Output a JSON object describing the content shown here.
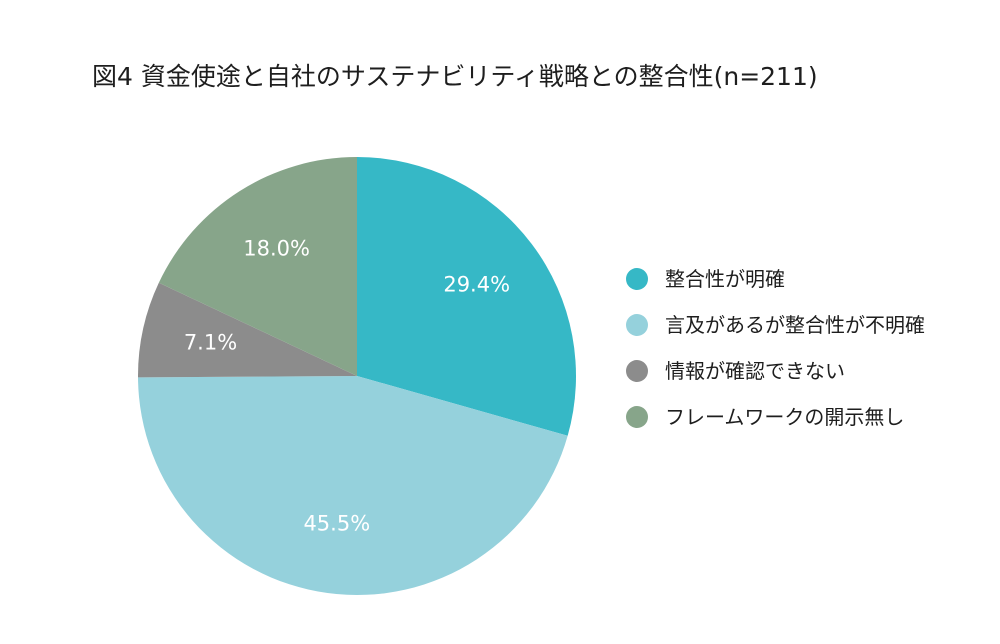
{
  "chart_data": {
    "type": "pie",
    "title": "図4 資金使途と自社のサステナビリティ戦略との整合性(n=211)",
    "categories": [
      "整合性が明確",
      "言及があるが整合性が不明確",
      "情報が確認できない",
      "フレームワークの開示無し"
    ],
    "values": [
      29.4,
      45.5,
      7.1,
      18.0
    ],
    "value_labels": [
      "29.4%",
      "45.5%",
      "7.1%",
      "18.0%"
    ],
    "colors": [
      "#36b8c6",
      "#95d1dc",
      "#8c8c8c",
      "#87a58a"
    ],
    "start_angle": "12 o'clock",
    "direction": "clockwise",
    "legend_position": "right"
  }
}
